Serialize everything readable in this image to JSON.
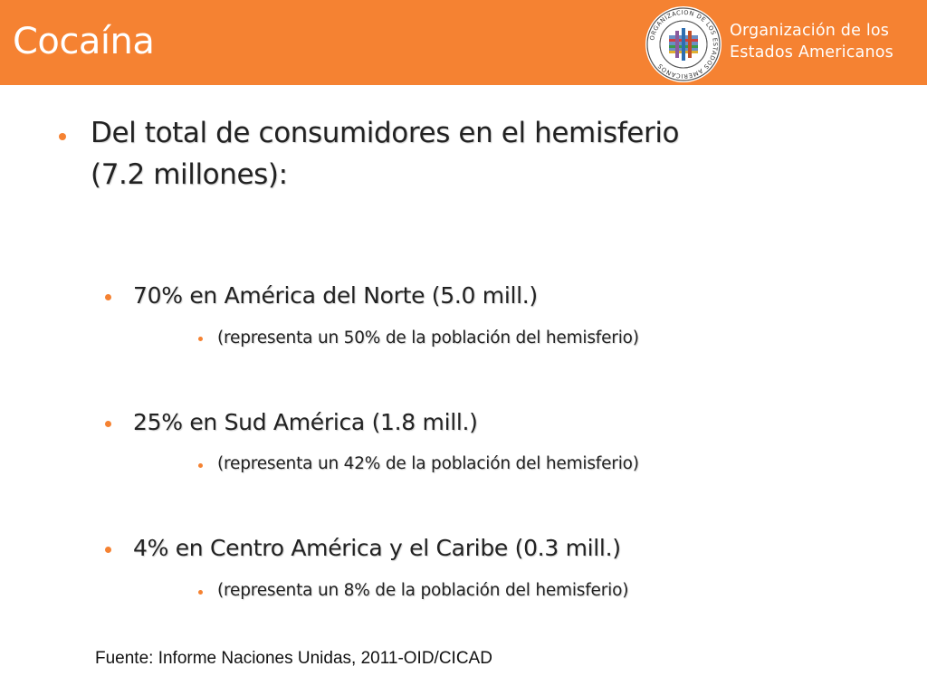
{
  "slide": {
    "title": "Cocaína",
    "org_name_line1": "Organización de los",
    "org_name_line2": "Estados Americanos",
    "seal_text": "ORGANIZACION DE LOS ESTADOS AMERICANOS"
  },
  "bullets": {
    "main_line1": "Del total de consumidores en el hemisferio",
    "main_line2": "(7.2 millones):",
    "north": "70% en América del Norte (5.0 mill.)",
    "north_sub": "(representa un 50% de la población del hemisferio)",
    "south": "25% en Sud América (1.8 mill.)",
    "south_sub": "(representa un 42% de la población del hemisferio)",
    "central": "4% en Centro América y el Caribe (0.3 mill.)",
    "central_sub": "(representa un 8% de la población del hemisferio)"
  },
  "footer": {
    "source": "Fuente: Informe Naciones Unidas, 2011-OID/CICAD"
  },
  "colors": {
    "header": "#f58232",
    "bullet": "#f58232",
    "text": "#222222"
  }
}
